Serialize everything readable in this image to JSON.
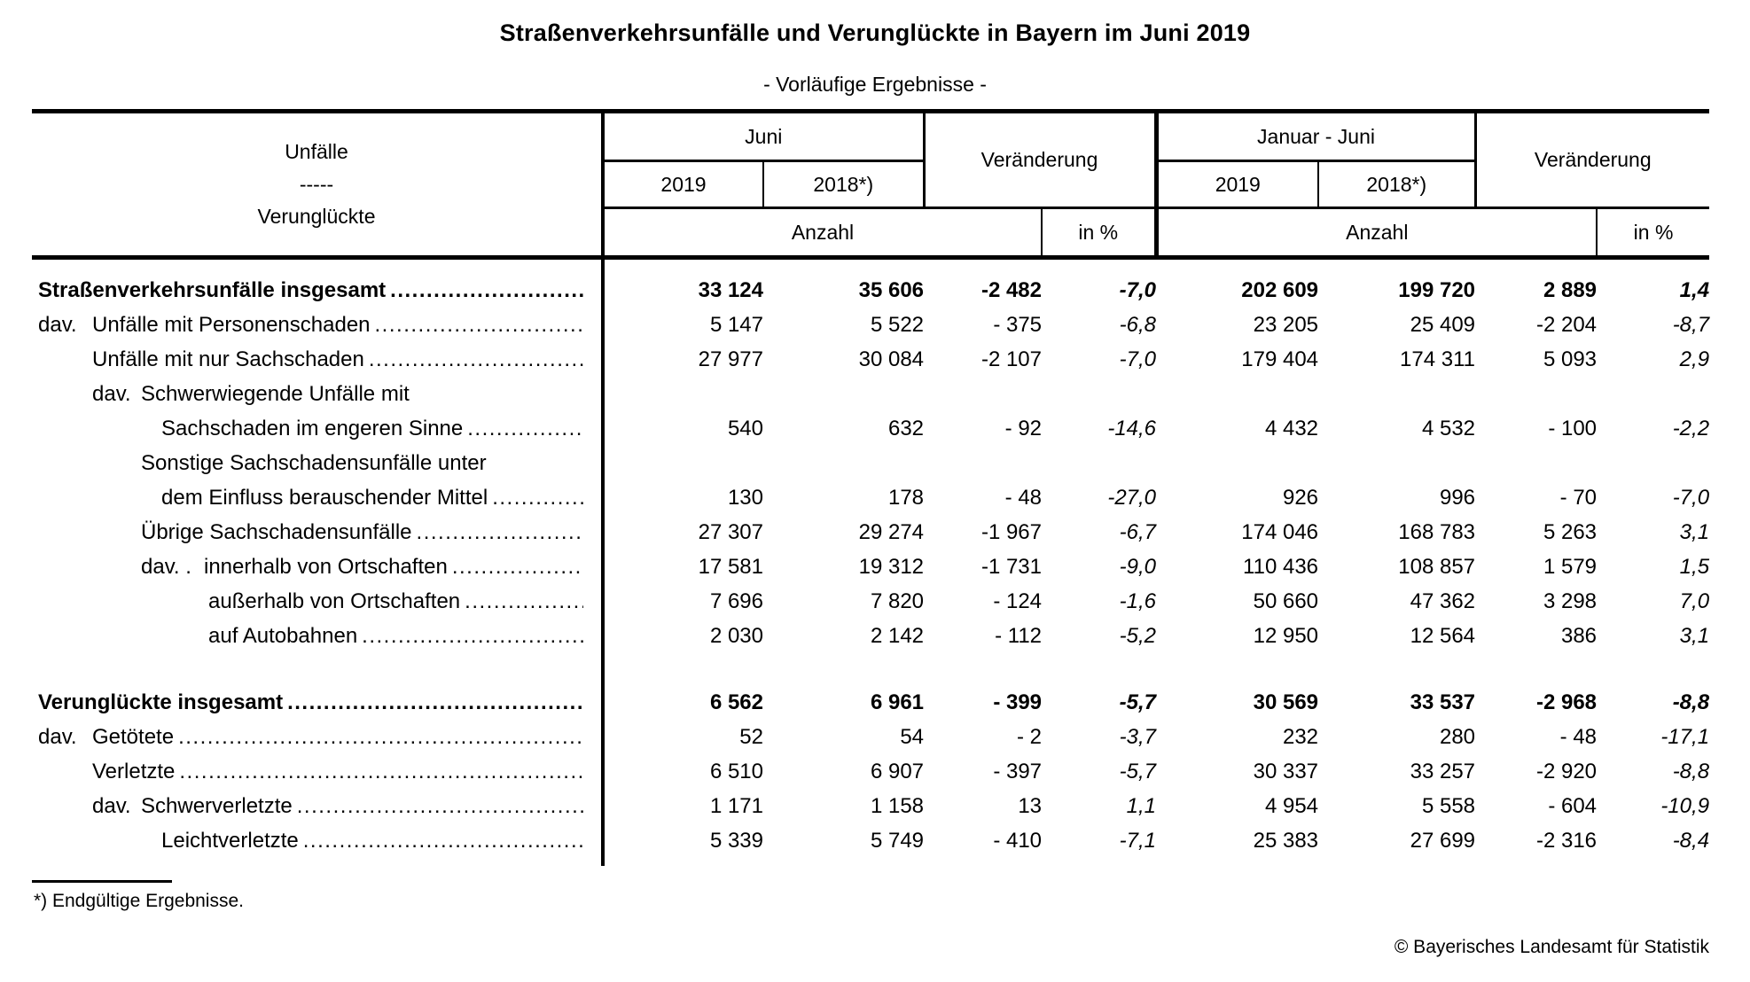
{
  "page": {
    "title": "Straßenverkehrsunfälle und Verunglückte in Bayern im Juni 2019",
    "subtitle": "- Vorläufige Ergebnisse -",
    "footnote": "*) Endgültige Ergebnisse.",
    "copyright": "© Bayerisches Landesamt für Statistik"
  },
  "table": {
    "row_header": {
      "line1": "Unfälle",
      "line2": "-----",
      "line3": "Verunglückte"
    },
    "col_groups": {
      "juni": "Juni",
      "veraenderung1": "Veränderung",
      "januar_juni": "Januar - Juni",
      "veraenderung2": "Veränderung"
    },
    "years": {
      "y2019": "2019",
      "y2018": "2018*)"
    },
    "measures": {
      "anzahl1": "Anzahl",
      "in_pct1": "in %",
      "anzahl2": "Anzahl",
      "in_pct2": "in %"
    },
    "columns": [
      "juni_2019",
      "juni_2018",
      "change_abs",
      "change_pct",
      "jan_juni_2019",
      "jan_juni_2018",
      "change2_abs",
      "change2_pct"
    ],
    "rows": [
      {
        "label": "Straßenverkehrsunfälle insgesamt",
        "indent": 0,
        "bold": true,
        "dots": true,
        "values": [
          "33 124",
          "35 606",
          "-2 482",
          "-7,0",
          "202 609",
          "199 720",
          "2 889",
          "1,4"
        ]
      },
      {
        "prefix": "dav.",
        "prefix_indent": 0,
        "label": "Unfälle mit Personenschaden",
        "indent": 1,
        "bold": false,
        "dots": true,
        "values": [
          "5 147",
          "5 522",
          "- 375",
          "-6,8",
          "23 205",
          "25 409",
          "-2 204",
          "-8,7"
        ]
      },
      {
        "label": "Unfälle mit nur Sachschaden",
        "indent": 1,
        "bold": false,
        "dots": true,
        "values": [
          "27 977",
          "30 084",
          "-2 107",
          "-7,0",
          "179 404",
          "174 311",
          "5 093",
          "2,9"
        ]
      },
      {
        "prefix": "dav.",
        "prefix_indent": 1,
        "label": "Schwerwiegende Unfälle mit",
        "indent": 2,
        "bold": false,
        "dots": false,
        "values": []
      },
      {
        "label": "Sachschaden im engeren Sinne",
        "indent": 3,
        "bold": false,
        "dots": true,
        "values": [
          "540",
          "632",
          "- 92",
          "-14,6",
          "4 432",
          "4 532",
          "- 100",
          "-2,2"
        ]
      },
      {
        "label": "Sonstige Sachschadensunfälle unter",
        "indent": 2,
        "bold": false,
        "dots": false,
        "values": []
      },
      {
        "label": "dem Einfluss berauschender Mittel",
        "indent": 3,
        "bold": false,
        "dots": true,
        "values": [
          "130",
          "178",
          "- 48",
          "-27,0",
          "926",
          "996",
          "- 70",
          "-7,0"
        ]
      },
      {
        "label": "Übrige Sachschadensunfälle",
        "indent": 2,
        "bold": false,
        "dots": true,
        "values": [
          "27 307",
          "29 274",
          "-1 967",
          "-6,7",
          "174 046",
          "168 783",
          "5 263",
          "3,1"
        ]
      },
      {
        "prefix": "dav. .",
        "prefix_indent": 2,
        "label": "innerhalb von Ortschaften",
        "indent": 4,
        "bold": false,
        "dots": true,
        "values": [
          "17 581",
          "19 312",
          "-1 731",
          "-9,0",
          "110 436",
          "108 857",
          "1 579",
          "1,5"
        ]
      },
      {
        "label": "außerhalb von Ortschaften",
        "indent": 5,
        "bold": false,
        "dots": true,
        "values": [
          "7 696",
          "7 820",
          "- 124",
          "-1,6",
          "50 660",
          "47 362",
          "3 298",
          "7,0"
        ]
      },
      {
        "label": "auf Autobahnen",
        "indent": 5,
        "bold": false,
        "dots": true,
        "values": [
          "2 030",
          "2 142",
          "- 112",
          "-5,2",
          "12 950",
          "12 564",
          "386",
          "3,1"
        ]
      },
      {
        "label": "Verunglückte insgesamt",
        "indent": 0,
        "bold": true,
        "dots": true,
        "gap_before": true,
        "values": [
          "6 562",
          "6 961",
          "- 399",
          "-5,7",
          "30 569",
          "33 537",
          "-2 968",
          "-8,8"
        ]
      },
      {
        "prefix": "dav.",
        "prefix_indent": 0,
        "label": "Getötete",
        "indent": 1,
        "bold": false,
        "dots": true,
        "values": [
          "52",
          "54",
          "- 2",
          "-3,7",
          "232",
          "280",
          "- 48",
          "-17,1"
        ]
      },
      {
        "label": "Verletzte",
        "indent": 1,
        "bold": false,
        "dots": true,
        "values": [
          "6 510",
          "6 907",
          "- 397",
          "-5,7",
          "30 337",
          "33 257",
          "-2 920",
          "-8,8"
        ]
      },
      {
        "prefix": "dav.",
        "prefix_indent": 1,
        "label": "Schwerverletzte",
        "indent": 2,
        "bold": false,
        "dots": true,
        "values": [
          "1 171",
          "1 158",
          "13",
          "1,1",
          "4 954",
          "5 558",
          "- 604",
          "-10,9"
        ]
      },
      {
        "label": "Leichtverletzte",
        "indent": 3,
        "bold": false,
        "dots": true,
        "values": [
          "5 339",
          "5 749",
          "- 410",
          "-7,1",
          "25 383",
          "27 699",
          "-2 316",
          "-8,4"
        ]
      }
    ]
  }
}
